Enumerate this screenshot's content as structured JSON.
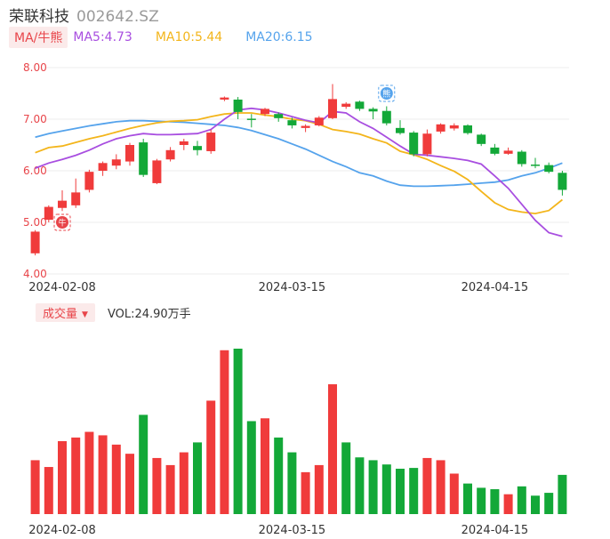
{
  "header": {
    "name": "荣联科技",
    "code": "002642.SZ"
  },
  "ma_legend": {
    "tag": "MA/牛熊",
    "items": [
      {
        "label": "MA5:4.73",
        "color": "#a84ee0"
      },
      {
        "label": "MA10:5.44",
        "color": "#f3b51b"
      },
      {
        "label": "MA20:6.15",
        "color": "#55a3ec"
      }
    ]
  },
  "volume_legend": {
    "tag": "成交量",
    "value": "VOL:24.90万手"
  },
  "colors": {
    "up": "#f03b3b",
    "down": "#13a838",
    "grid": "#ececec",
    "axis_label": "#e8454a",
    "date_label": "#333333",
    "bull_badge": "#e8454a",
    "bear_badge": "#55a3ec"
  },
  "icons": [
    "bull-badge-icon",
    "bear-badge-icon",
    "dropdown-triangle-icon"
  ],
  "chart_data": [
    {
      "type": "candlestick",
      "title": "",
      "ylim": [
        4.0,
        8.0
      ],
      "y_ticks": [
        "8.00",
        "7.00",
        "6.00",
        "5.00",
        "4.00"
      ],
      "x_tick_labels": [
        {
          "label": "2024-02-08",
          "index": 2
        },
        {
          "label": "2024-03-15",
          "index": 19
        },
        {
          "label": "2024-04-15",
          "index": 34
        }
      ],
      "candles": [
        {
          "o": 4.4,
          "c": 4.82,
          "h": 4.85,
          "l": 4.36
        },
        {
          "o": 5.05,
          "c": 5.3,
          "h": 5.33,
          "l": 5.0
        },
        {
          "o": 5.28,
          "c": 5.42,
          "h": 5.62,
          "l": 5.22
        },
        {
          "o": 5.33,
          "c": 5.58,
          "h": 5.85,
          "l": 5.28
        },
        {
          "o": 5.63,
          "c": 5.98,
          "h": 6.02,
          "l": 5.58
        },
        {
          "o": 6.0,
          "c": 6.15,
          "h": 6.18,
          "l": 5.9
        },
        {
          "o": 6.1,
          "c": 6.22,
          "h": 6.32,
          "l": 6.03
        },
        {
          "o": 6.18,
          "c": 6.5,
          "h": 6.54,
          "l": 6.1
        },
        {
          "o": 6.55,
          "c": 5.92,
          "h": 6.62,
          "l": 5.88
        },
        {
          "o": 5.76,
          "c": 6.2,
          "h": 6.23,
          "l": 5.74
        },
        {
          "o": 6.22,
          "c": 6.4,
          "h": 6.46,
          "l": 6.18
        },
        {
          "o": 6.5,
          "c": 6.57,
          "h": 6.62,
          "l": 6.4
        },
        {
          "o": 6.48,
          "c": 6.4,
          "h": 6.58,
          "l": 6.3
        },
        {
          "o": 6.38,
          "c": 6.74,
          "h": 6.8,
          "l": 6.33
        },
        {
          "o": 7.38,
          "c": 7.42,
          "h": 7.44,
          "l": 7.35
        },
        {
          "o": 7.38,
          "c": 7.14,
          "h": 7.43,
          "l": 7.0
        },
        {
          "o": 7.01,
          "c": 6.99,
          "h": 7.1,
          "l": 6.84
        },
        {
          "o": 7.1,
          "c": 7.2,
          "h": 7.22,
          "l": 7.06
        },
        {
          "o": 7.1,
          "c": 7.02,
          "h": 7.13,
          "l": 6.95
        },
        {
          "o": 6.98,
          "c": 6.88,
          "h": 7.03,
          "l": 6.82
        },
        {
          "o": 6.83,
          "c": 6.87,
          "h": 6.9,
          "l": 6.75
        },
        {
          "o": 6.88,
          "c": 7.03,
          "h": 7.06,
          "l": 6.86
        },
        {
          "o": 7.02,
          "c": 7.39,
          "h": 7.68,
          "l": 7.0
        },
        {
          "o": 7.24,
          "c": 7.3,
          "h": 7.33,
          "l": 7.2
        },
        {
          "o": 7.34,
          "c": 7.2,
          "h": 7.36,
          "l": 7.16
        },
        {
          "o": 7.2,
          "c": 7.15,
          "h": 7.23,
          "l": 7.0
        },
        {
          "o": 7.16,
          "c": 6.92,
          "h": 7.25,
          "l": 6.88
        },
        {
          "o": 6.83,
          "c": 6.73,
          "h": 6.98,
          "l": 6.7
        },
        {
          "o": 6.74,
          "c": 6.32,
          "h": 6.77,
          "l": 6.28
        },
        {
          "o": 6.32,
          "c": 6.72,
          "h": 6.8,
          "l": 6.28
        },
        {
          "o": 6.76,
          "c": 6.9,
          "h": 6.92,
          "l": 6.72
        },
        {
          "o": 6.82,
          "c": 6.88,
          "h": 6.92,
          "l": 6.78
        },
        {
          "o": 6.88,
          "c": 6.73,
          "h": 6.9,
          "l": 6.7
        },
        {
          "o": 6.7,
          "c": 6.52,
          "h": 6.72,
          "l": 6.48
        },
        {
          "o": 6.45,
          "c": 6.33,
          "h": 6.52,
          "l": 6.3
        },
        {
          "o": 6.33,
          "c": 6.39,
          "h": 6.45,
          "l": 6.31
        },
        {
          "o": 6.37,
          "c": 6.13,
          "h": 6.4,
          "l": 6.08
        },
        {
          "o": 6.12,
          "c": 6.1,
          "h": 6.25,
          "l": 6.05
        },
        {
          "o": 6.11,
          "c": 5.98,
          "h": 6.16,
          "l": 5.95
        },
        {
          "o": 5.96,
          "c": 5.63,
          "h": 6.0,
          "l": 5.52
        }
      ],
      "ma5": [
        6.05,
        6.15,
        6.22,
        6.3,
        6.4,
        6.52,
        6.62,
        6.68,
        6.72,
        6.7,
        6.7,
        6.71,
        6.72,
        6.8,
        7.0,
        7.18,
        7.21,
        7.18,
        7.12,
        7.05,
        6.98,
        6.93,
        7.15,
        7.12,
        6.95,
        6.82,
        6.65,
        6.48,
        6.32,
        6.3,
        6.27,
        6.24,
        6.2,
        6.13,
        5.9,
        5.66,
        5.35,
        5.04,
        4.8,
        4.73
      ],
      "ma10": [
        6.35,
        6.45,
        6.48,
        6.55,
        6.62,
        6.68,
        6.75,
        6.82,
        6.88,
        6.93,
        6.96,
        6.97,
        6.99,
        7.05,
        7.1,
        7.12,
        7.12,
        7.08,
        7.05,
        7.0,
        6.97,
        6.9,
        6.8,
        6.76,
        6.71,
        6.62,
        6.54,
        6.38,
        6.31,
        6.22,
        6.1,
        5.99,
        5.83,
        5.6,
        5.38,
        5.25,
        5.2,
        5.17,
        5.23,
        5.44
      ],
      "ma20": [
        6.65,
        6.72,
        6.77,
        6.82,
        6.87,
        6.91,
        6.95,
        6.97,
        6.97,
        6.96,
        6.95,
        6.94,
        6.92,
        6.9,
        6.88,
        6.84,
        6.78,
        6.7,
        6.62,
        6.52,
        6.42,
        6.3,
        6.18,
        6.08,
        5.96,
        5.9,
        5.8,
        5.72,
        5.7,
        5.7,
        5.71,
        5.72,
        5.74,
        5.76,
        5.78,
        5.82,
        5.9,
        5.96,
        6.05,
        6.15
      ],
      "markers": [
        {
          "icon": "bull-badge-icon",
          "index": 2,
          "price": 5.0,
          "text": "牛"
        },
        {
          "icon": "bear-badge-icon",
          "index": 26,
          "price": 7.5,
          "text": "熊"
        }
      ]
    },
    {
      "type": "bar",
      "title": "",
      "x_tick_labels": [
        {
          "label": "2024-02-08",
          "index": 2
        },
        {
          "label": "2024-03-15",
          "index": 19
        },
        {
          "label": "2024-04-15",
          "index": 34
        }
      ],
      "volume_unit": "万手",
      "values": [
        {
          "v": 34.2,
          "up": true
        },
        {
          "v": 29.9,
          "up": true
        },
        {
          "v": 46.3,
          "up": true
        },
        {
          "v": 48.6,
          "up": true
        },
        {
          "v": 52.2,
          "up": true
        },
        {
          "v": 50.0,
          "up": true
        },
        {
          "v": 44.1,
          "up": true
        },
        {
          "v": 38.3,
          "up": true
        },
        {
          "v": 63.0,
          "up": false
        },
        {
          "v": 35.6,
          "up": true
        },
        {
          "v": 31.1,
          "up": true
        },
        {
          "v": 39.2,
          "up": true
        },
        {
          "v": 45.5,
          "up": false
        },
        {
          "v": 72.0,
          "up": true
        },
        {
          "v": 104.0,
          "up": true
        },
        {
          "v": 105.0,
          "up": false
        },
        {
          "v": 59.0,
          "up": false
        },
        {
          "v": 60.8,
          "up": true
        },
        {
          "v": 48.6,
          "up": false
        },
        {
          "v": 39.2,
          "up": false
        },
        {
          "v": 26.6,
          "up": true
        },
        {
          "v": 31.1,
          "up": true
        },
        {
          "v": 82.4,
          "up": true
        },
        {
          "v": 45.5,
          "up": false
        },
        {
          "v": 36.0,
          "up": false
        },
        {
          "v": 34.2,
          "up": false
        },
        {
          "v": 31.5,
          "up": false
        },
        {
          "v": 28.8,
          "up": false
        },
        {
          "v": 29.3,
          "up": false
        },
        {
          "v": 35.6,
          "up": true
        },
        {
          "v": 34.2,
          "up": true
        },
        {
          "v": 25.7,
          "up": true
        },
        {
          "v": 19.4,
          "up": false
        },
        {
          "v": 16.7,
          "up": false
        },
        {
          "v": 15.8,
          "up": false
        },
        {
          "v": 12.6,
          "up": true
        },
        {
          "v": 17.6,
          "up": false
        },
        {
          "v": 11.7,
          "up": false
        },
        {
          "v": 13.5,
          "up": false
        },
        {
          "v": 24.9,
          "up": false
        }
      ]
    }
  ]
}
